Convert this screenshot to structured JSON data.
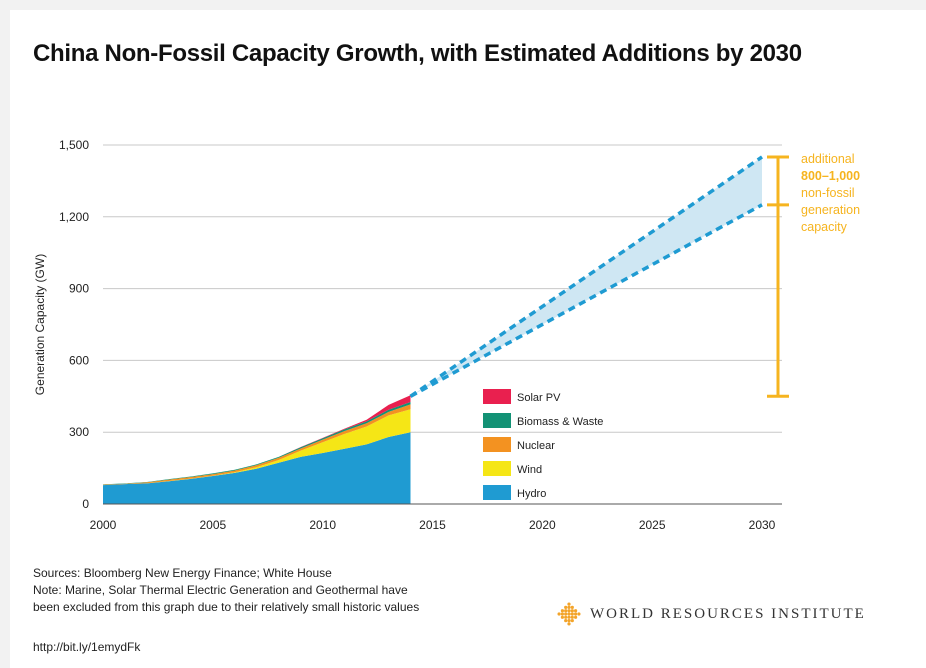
{
  "title": "China Non-Fossil Capacity Growth, with Estimated Additions by 2030",
  "chart_data": {
    "type": "area",
    "ylabel": "Generation Capacity (GW)",
    "xlabel": "",
    "xlim": [
      2000,
      2030
    ],
    "ylim": [
      0,
      1500
    ],
    "x_ticks": [
      "2000",
      "2005",
      "2010",
      "2015",
      "2020",
      "2025",
      "2030"
    ],
    "y_ticks": [
      "0",
      "300",
      "600",
      "900",
      "1,200",
      "1,500"
    ],
    "grid": "horizontal",
    "stacked": true,
    "x": [
      2000,
      2001,
      2002,
      2003,
      2004,
      2005,
      2006,
      2007,
      2008,
      2009,
      2010,
      2011,
      2012,
      2013,
      2014
    ],
    "series": [
      {
        "name": "Hydro",
        "color": "#1f9bd2",
        "values": [
          79,
          83,
          86,
          95,
          105,
          117,
          130,
          148,
          172,
          197,
          213,
          231,
          249,
          280,
          300
        ]
      },
      {
        "name": "Wind",
        "color": "#f5e616",
        "values": [
          0,
          0,
          1,
          1,
          1,
          1,
          3,
          6,
          12,
          26,
          45,
          62,
          75,
          90,
          96
        ]
      },
      {
        "name": "Nuclear",
        "color": "#f39221",
        "values": [
          2,
          2,
          4,
          6,
          7,
          7,
          7,
          9,
          9,
          9,
          11,
          12,
          13,
          15,
          20
        ]
      },
      {
        "name": "Biomass & Waste",
        "color": "#139275",
        "values": [
          1,
          1,
          1,
          2,
          2,
          3,
          3,
          3,
          4,
          5,
          6,
          7,
          8,
          9,
          10
        ]
      },
      {
        "name": "Solar PV",
        "color": "#e9204f",
        "values": [
          0,
          0,
          0,
          0,
          0,
          0,
          0,
          0,
          0,
          1,
          1,
          3,
          7,
          20,
          28
        ]
      }
    ],
    "projection": {
      "x": [
        2014,
        2030
      ],
      "upper": [
        450,
        1450
      ],
      "lower": [
        450,
        1250
      ],
      "fill_color": "#cfe7f3",
      "line_color": "#1f9bd2"
    },
    "annotation": {
      "color": "#f6b41f",
      "range": [
        450,
        1450
      ],
      "mid_value": 1250,
      "line1": "additional",
      "line2": "800–1,000",
      "line3": "non-fossil",
      "line4": "generation",
      "line5": "capacity"
    },
    "legend_order": [
      "Solar PV",
      "Biomass & Waste",
      "Nuclear",
      "Wind",
      "Hydro"
    ],
    "legend_position": "center"
  },
  "footer": {
    "sources": "Sources: Bloomberg New Energy Finance; White House",
    "note_line1": "Note: Marine, Solar Thermal Electric Generation and Geothermal have",
    "note_line2": "been excluded from this graph due to their relatively small historic values",
    "url": "http://bit.ly/1emydFk",
    "org": "WORLD RESOURCES INSTITUTE",
    "logo_color": "#f3a42a"
  }
}
